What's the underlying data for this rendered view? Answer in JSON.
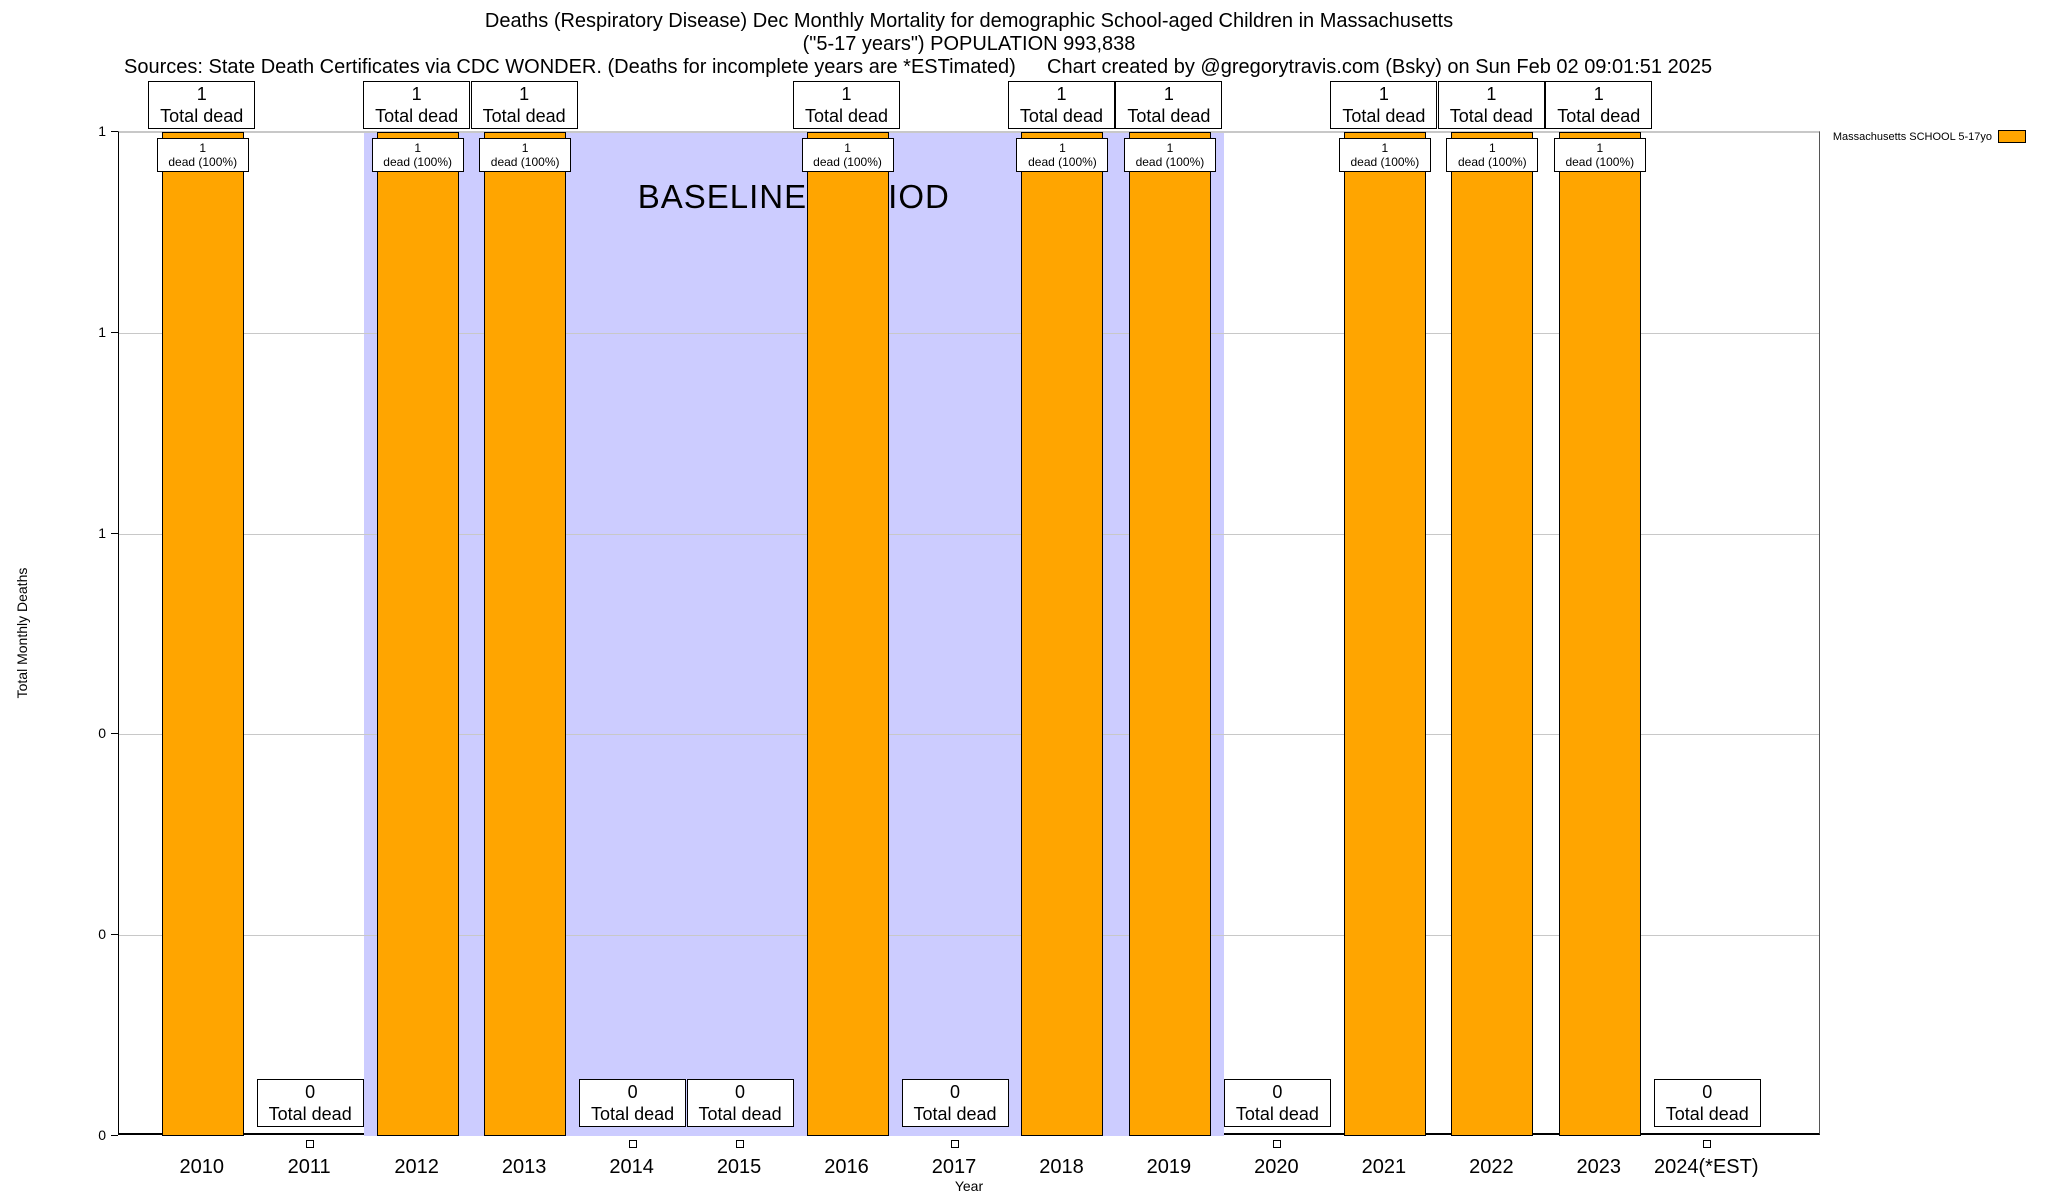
{
  "header": {
    "title": "Deaths (Respiratory Disease) Dec Monthly Mortality for demographic School-aged Children in Massachusetts",
    "subtitle": "(\"5-17 years\") POPULATION 993,838",
    "sources": "Sources: State Death Certificates via CDC WONDER. (Deaths for incomplete years are *ESTimated)",
    "credit": "Chart created by @gregorytravis.com (Bsky) on Sun Feb 02 09:01:51 2025"
  },
  "chart_data": {
    "type": "bar",
    "title": "Deaths (Respiratory Disease) Dec Monthly Mortality for demographic School-aged Children in Massachusetts",
    "subtitle": "(\"5-17 years\") POPULATION 993,838",
    "xlabel": "Year",
    "ylabel": "Total Monthly Deaths",
    "categories": [
      "2010",
      "2011",
      "2012",
      "2013",
      "2014",
      "2015",
      "2016",
      "2017",
      "2018",
      "2019",
      "2020",
      "2021",
      "2022",
      "2023",
      "2024(*EST)"
    ],
    "values": [
      1,
      0,
      1,
      1,
      0,
      0,
      1,
      0,
      1,
      1,
      0,
      1,
      1,
      1,
      0
    ],
    "ylim": [
      0,
      1
    ],
    "ytick_labels_top_to_bottom": [
      "1",
      "1",
      "1",
      "0",
      "0",
      "0"
    ],
    "grid": true,
    "legend_position": "top-right",
    "legend_label": "Massachusetts SCHOOL 5-17yo",
    "bar_color": "#FFA500",
    "band_color": "#CCCCFF",
    "baseline_band": {
      "label": "BASELINE PERIOD",
      "start_year": "2012",
      "end_year": "2019"
    },
    "labels": {
      "total_dead": "Total dead",
      "bar_inner_line2": "dead (100%)"
    }
  }
}
